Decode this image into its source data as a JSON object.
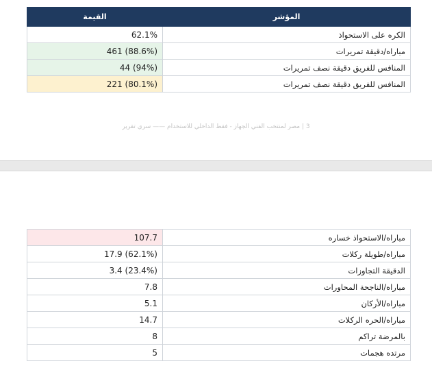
{
  "page1": {
    "header": {
      "value": "القيمة",
      "indicator": "المؤشر"
    },
    "rows": [
      {
        "value": "62.1%",
        "indicator": "الكره على الاستحواذ",
        "highlight": "none"
      },
      {
        "value": "461 (88.6%)",
        "indicator": "مباراه/دقيقة تمريرات",
        "highlight": "green"
      },
      {
        "value": "44 (94%)",
        "indicator": "المنافس للفريق دقيقة نصف تمريرات",
        "highlight": "green"
      },
      {
        "value": "221 (80.1%)",
        "indicator": "المنافس للفريق دقيقة نصف تمريرات",
        "highlight": "yellow"
      }
    ],
    "footer": "3 | مصر لمنتخب الفني الجهاز - فقط الداخلي للاستخدام —— سري تقرير"
  },
  "page2": {
    "rows": [
      {
        "value": "107.7",
        "indicator": "مباراه/الاستحواذ خساره",
        "highlight": "red"
      },
      {
        "value": "17.9 (62.1%)",
        "indicator": "مباراه/طويلة ركلات",
        "highlight": "none"
      },
      {
        "value": "3.4 (23.4%)",
        "indicator": "الدقيقة التجاوزات",
        "highlight": "none"
      },
      {
        "value": "7.8",
        "indicator": "مباراه/الناجحة المحاورات",
        "highlight": "none"
      },
      {
        "value": "5.1",
        "indicator": "مباراه/الأركان",
        "highlight": "none"
      },
      {
        "value": "14.7",
        "indicator": "مباراه/الحره الركلات",
        "highlight": "none"
      },
      {
        "value": "8",
        "indicator": "بالمرضة تراكم",
        "highlight": "none"
      },
      {
        "value": "5",
        "indicator": "مرتده هجمات",
        "highlight": "none"
      }
    ]
  },
  "colors": {
    "header_bg": "#1f3a5f",
    "green": "#e6f4e8",
    "yellow": "#fdf1cf",
    "red": "#fde7e9"
  }
}
